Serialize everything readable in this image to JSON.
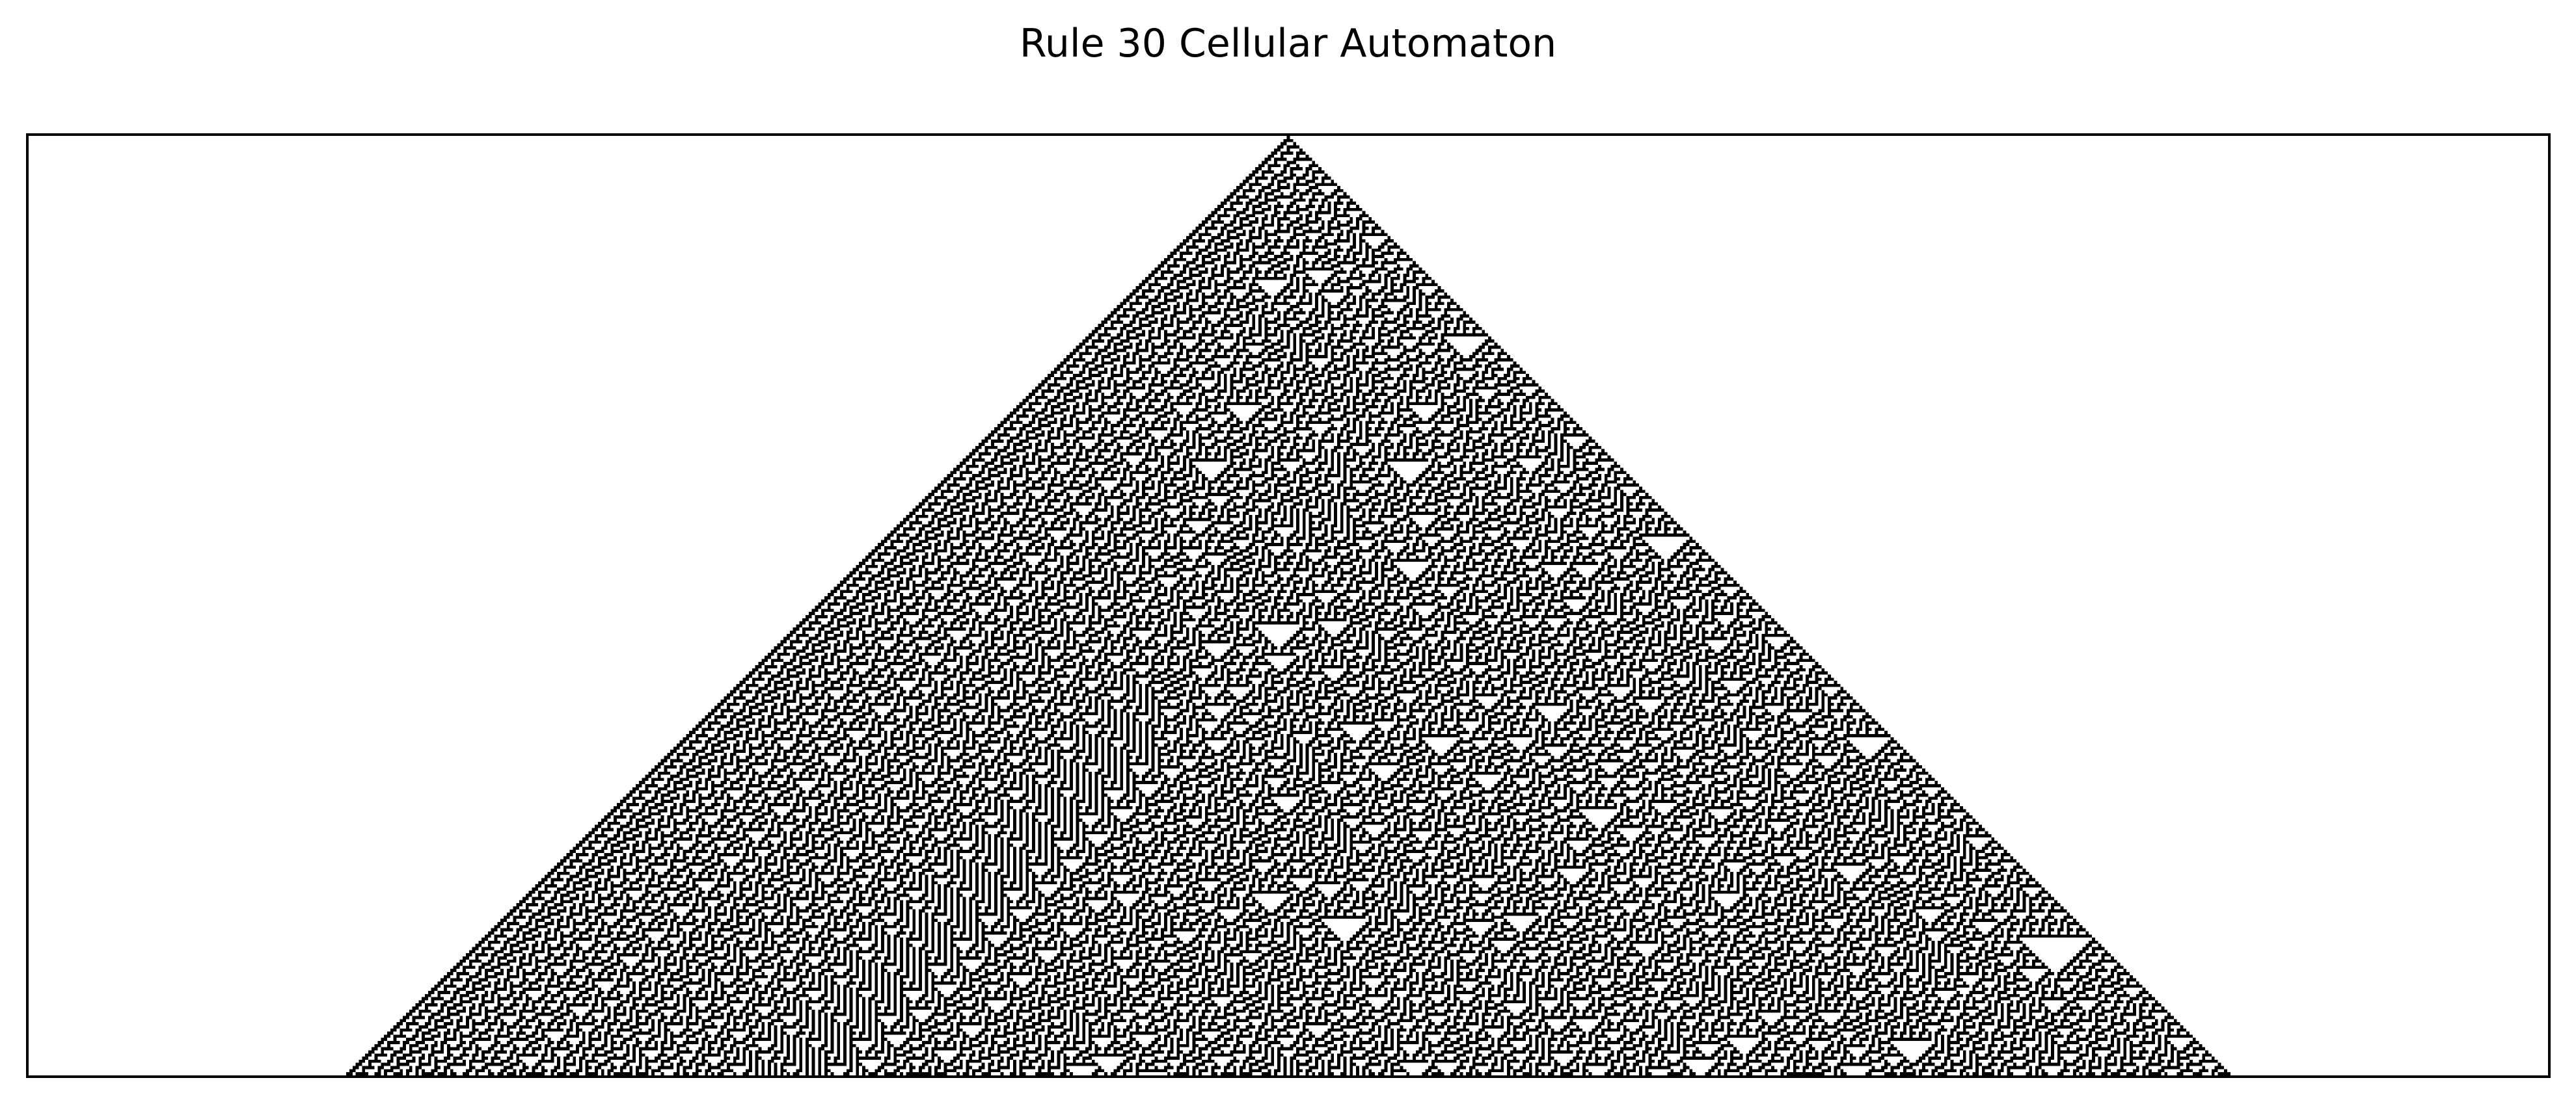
{
  "figure": {
    "title": "Rule 30 Cellular Automaton"
  },
  "automaton": {
    "rule": 30,
    "initial_condition": "single black cell at center",
    "axes_visible": false,
    "colors": {
      "alive": "#000000",
      "dead": "#ffffff",
      "frame": "#000000"
    }
  }
}
